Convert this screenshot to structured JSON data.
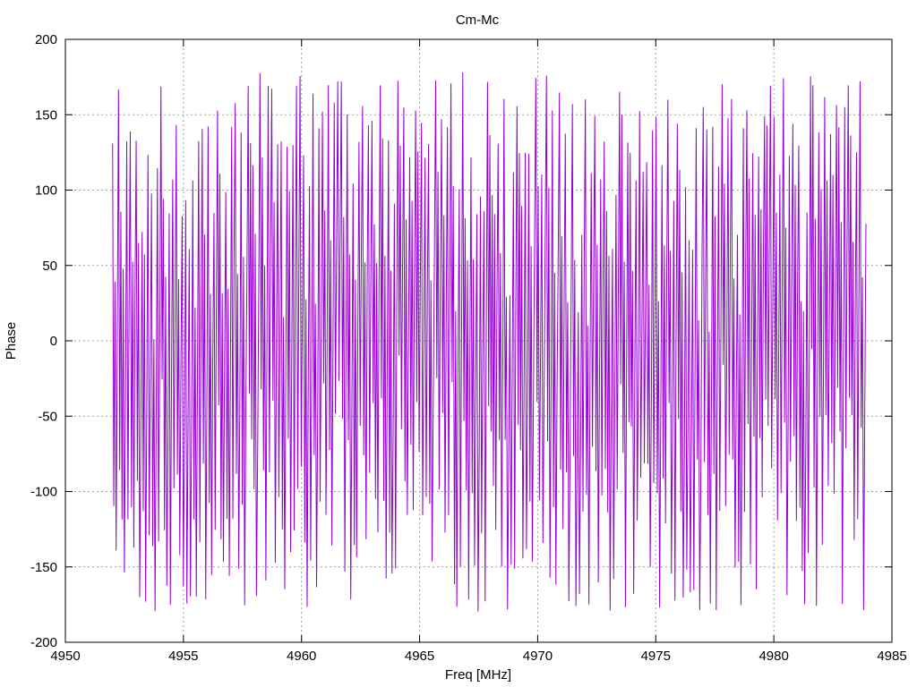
{
  "chart_data": {
    "type": "line",
    "title": "Cm-Mc",
    "xlabel": "Freq [MHz]",
    "ylabel": "Phase",
    "xlim": [
      4950,
      4985
    ],
    "ylim": [
      -200,
      200
    ],
    "xticks": [
      4950,
      4955,
      4960,
      4965,
      4970,
      4975,
      4980,
      4985
    ],
    "yticks": [
      -200,
      -150,
      -100,
      -50,
      0,
      50,
      100,
      150,
      200
    ],
    "grid": true,
    "legend": "none",
    "series_color": "#9400d3",
    "series": [
      {
        "x_start": 4952.0,
        "x_end": 4983.9,
        "point_count": 640,
        "y_range": [
          -180,
          180
        ],
        "description_of_values": "rapidly oscillating phase wrapping between -180 and 180"
      }
    ]
  }
}
